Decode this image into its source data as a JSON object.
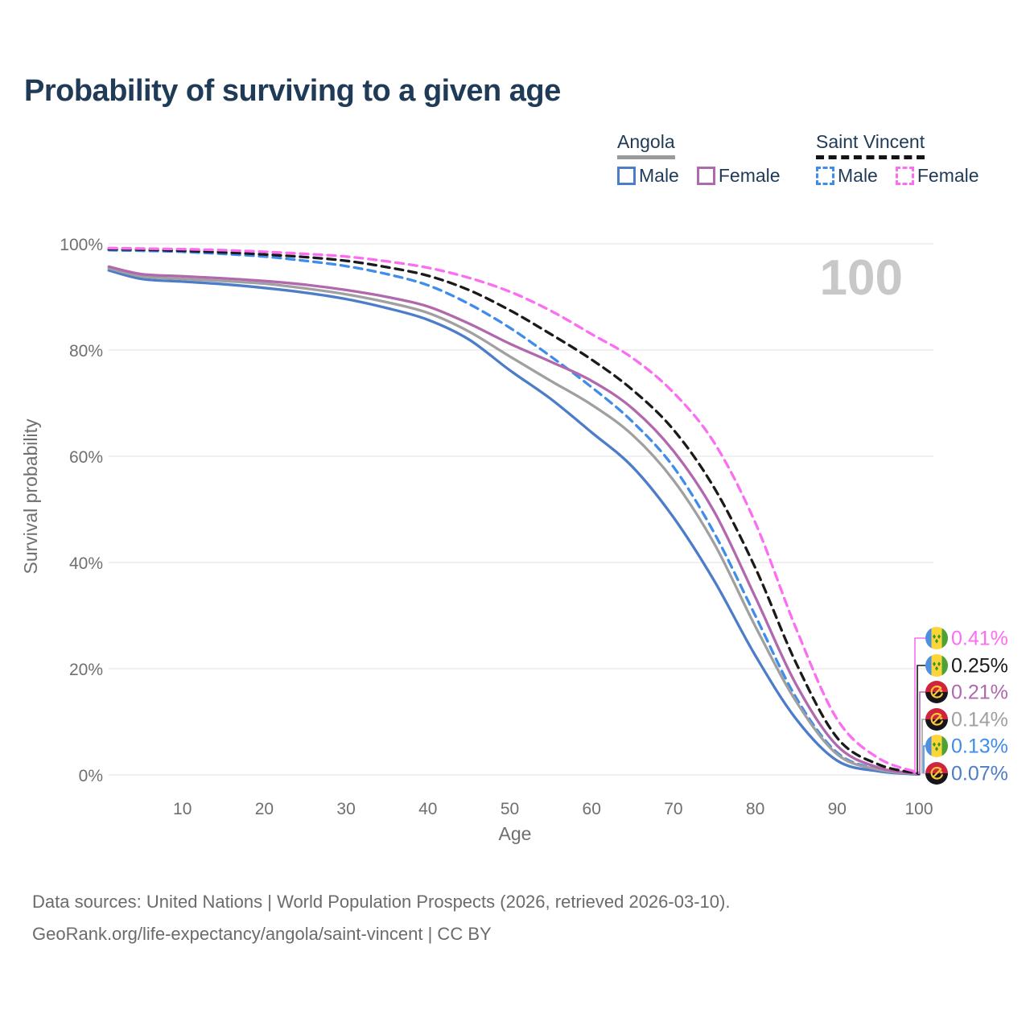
{
  "title": "Probability of surviving to a given age",
  "legend": {
    "groups": [
      {
        "id": "angola",
        "title": "Angola",
        "line_style": "solid",
        "underline_color": "#9a9a9a",
        "items": [
          {
            "label": "Male",
            "color": "#4d7cc9"
          },
          {
            "label": "Female",
            "color": "#b168ad"
          }
        ]
      },
      {
        "id": "saint-vincent",
        "title": "Saint Vincent",
        "line_style": "dashed",
        "underline_color": "#141414",
        "items": [
          {
            "label": "Male",
            "color": "#3f8ceb"
          },
          {
            "label": "Female",
            "color": "#fb6df1"
          }
        ]
      }
    ]
  },
  "footer": {
    "line1": "Data sources: United Nations | World Population Prospects (2026, retrieved 2026-03-10).",
    "line2": "GeoRank.org/life-expectancy/angola/saint-vincent | CC BY"
  },
  "chart_data": {
    "type": "line",
    "title": "Probability of surviving to a given age",
    "xlabel": "Age",
    "ylabel": "Survival probability",
    "age_indicator": "100",
    "xlim": [
      0,
      100
    ],
    "ylim": [
      0,
      100
    ],
    "grid": "horizontal",
    "legend_position": "top-right",
    "x_ticks": [
      10,
      20,
      30,
      40,
      50,
      60,
      70,
      80,
      90,
      100
    ],
    "y_ticks": [
      {
        "value": 0,
        "label": "0%"
      },
      {
        "value": 20,
        "label": "20%"
      },
      {
        "value": 40,
        "label": "40%"
      },
      {
        "value": 60,
        "label": "60%"
      },
      {
        "value": 80,
        "label": "80%"
      },
      {
        "value": 100,
        "label": "100%"
      }
    ],
    "x": [
      1,
      5,
      10,
      15,
      20,
      25,
      30,
      35,
      40,
      45,
      50,
      55,
      60,
      65,
      70,
      75,
      80,
      85,
      90,
      95,
      100
    ],
    "series": [
      {
        "id": "sv-female",
        "name": "Saint Vincent Female",
        "country": "saint-vincent",
        "color": "#fb6df1",
        "dashed": true,
        "end_label": "0.41%",
        "values": [
          99.2,
          99.1,
          99.0,
          98.8,
          98.5,
          98.1,
          97.6,
          96.7,
          95.5,
          93.6,
          91.0,
          87.4,
          83.0,
          78.5,
          72.0,
          62.5,
          47.5,
          27.5,
          10.5,
          3.2,
          0.41
        ]
      },
      {
        "id": "sv-total",
        "name": "Saint Vincent",
        "country": "saint-vincent",
        "color": "#1a1a1a",
        "dashed": true,
        "end_label": "0.25%",
        "values": [
          99.0,
          98.9,
          98.7,
          98.4,
          98.0,
          97.5,
          96.8,
          95.6,
          94.0,
          91.3,
          87.5,
          83.0,
          78.2,
          72.5,
          65.0,
          54.0,
          39.0,
          21.0,
          7.0,
          2.0,
          0.25
        ]
      },
      {
        "id": "ao-female",
        "name": "Angola Female",
        "country": "angola",
        "color": "#b168ad",
        "dashed": false,
        "end_label": "0.21%",
        "values": [
          95.7,
          94.3,
          93.9,
          93.5,
          93.0,
          92.3,
          91.3,
          90.0,
          88.2,
          85.0,
          81.2,
          77.8,
          74.2,
          69.0,
          61.0,
          49.5,
          33.5,
          17.0,
          5.5,
          1.4,
          0.21
        ]
      },
      {
        "id": "ao-total",
        "name": "Angola",
        "country": "angola",
        "color": "#a0a0a0",
        "dashed": false,
        "end_label": "0.14%",
        "values": [
          95.4,
          93.9,
          93.4,
          93.0,
          92.5,
          91.6,
          90.5,
          89.0,
          87.0,
          83.5,
          78.8,
          74.2,
          69.7,
          64.0,
          55.5,
          43.5,
          28.0,
          13.8,
          3.9,
          1.0,
          0.14
        ]
      },
      {
        "id": "sv-male",
        "name": "Saint Vincent Male",
        "country": "saint-vincent",
        "color": "#3f8ceb",
        "dashed": true,
        "end_label": "0.13%",
        "values": [
          98.8,
          98.7,
          98.5,
          98.1,
          97.6,
          96.8,
          95.8,
          94.3,
          92.2,
          88.7,
          84.2,
          78.8,
          73.0,
          66.5,
          58.0,
          45.5,
          30.0,
          14.5,
          4.2,
          1.1,
          0.13
        ]
      },
      {
        "id": "ao-male",
        "name": "Angola Male",
        "country": "angola",
        "color": "#4d7cc9",
        "dashed": false,
        "end_label": "0.07%",
        "values": [
          95.0,
          93.4,
          92.9,
          92.4,
          91.7,
          90.8,
          89.6,
          87.9,
          85.7,
          82.0,
          76.2,
          70.8,
          64.5,
          58.0,
          48.5,
          36.5,
          22.5,
          10.5,
          2.7,
          0.7,
          0.07
        ]
      }
    ]
  }
}
